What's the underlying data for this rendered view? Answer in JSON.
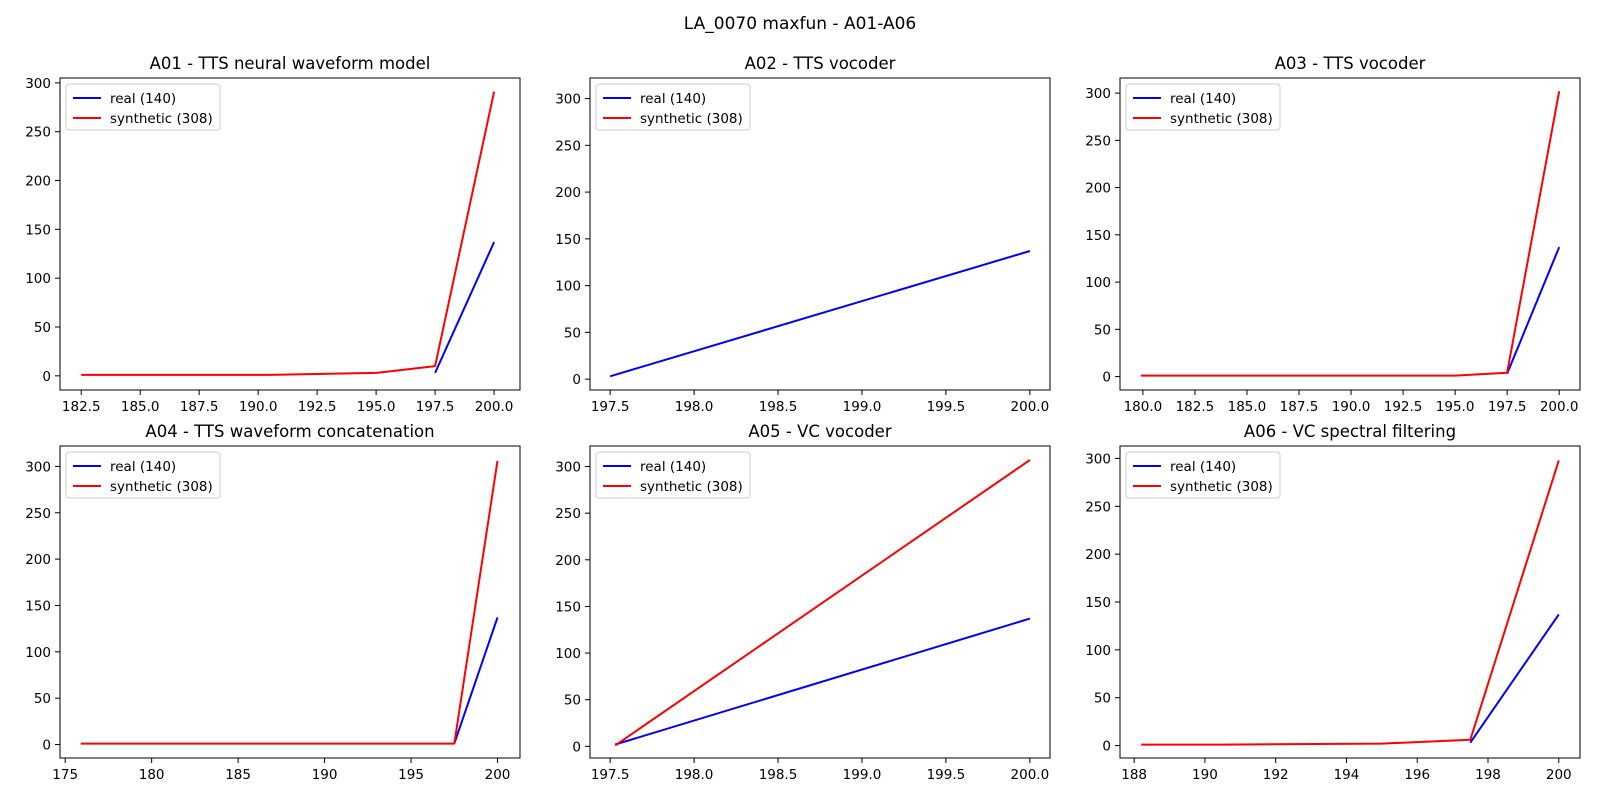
{
  "figure": {
    "suptitle": "LA_0070 maxfun - A01-A06"
  },
  "colors": {
    "real": "#0000ff",
    "synthetic": "#ff0000"
  },
  "chart_data": [
    {
      "type": "line",
      "title": "A01 - TTS neural waveform model",
      "xlim": [
        181.6,
        201.1
      ],
      "ylim": [
        -14.5,
        305
      ],
      "xticks": [
        "182.5",
        "185.0",
        "187.5",
        "190.0",
        "192.5",
        "195.0",
        "197.5",
        "200.0"
      ],
      "yticks": [
        "0",
        "50",
        "100",
        "150",
        "200",
        "250",
        "300"
      ],
      "legend_position": "upper left",
      "series": [
        {
          "name": "real (140)",
          "color": "#0000ff",
          "x": [
            197.5,
            200.0
          ],
          "y": [
            3,
            137
          ]
        },
        {
          "name": "synthetic (308)",
          "color": "#ff0000",
          "x": [
            182.5,
            190.5,
            195.0,
            197.5,
            200.0
          ],
          "y": [
            1,
            1,
            3,
            10,
            291
          ]
        }
      ]
    },
    {
      "type": "line",
      "title": "A02 - TTS vocoder",
      "xlim": [
        197.38,
        200.12
      ],
      "ylim": [
        -11.6,
        322
      ],
      "xticks": [
        "197.5",
        "198.0",
        "198.5",
        "199.0",
        "199.5",
        "200.0"
      ],
      "yticks": [
        "0",
        "50",
        "100",
        "150",
        "200",
        "250",
        "300"
      ],
      "legend_position": "upper left",
      "series": [
        {
          "name": "real (140)",
          "color": "#0000ff",
          "x": [
            197.5,
            200.0
          ],
          "y": [
            3,
            137
          ]
        },
        {
          "name": "synthetic (308)",
          "color": "#ff0000",
          "x": [],
          "y": []
        }
      ]
    },
    {
      "type": "line",
      "title": "A03 - TTS vocoder",
      "xlim": [
        178.9,
        201.0
      ],
      "ylim": [
        -14.2,
        316
      ],
      "xticks": [
        "180.0",
        "182.5",
        "185.0",
        "187.5",
        "190.0",
        "192.5",
        "195.0",
        "197.5",
        "200.0"
      ],
      "yticks": [
        "0",
        "50",
        "100",
        "150",
        "200",
        "250",
        "300"
      ],
      "legend_position": "upper left",
      "series": [
        {
          "name": "real (140)",
          "color": "#0000ff",
          "x": [
            197.5,
            200.0
          ],
          "y": [
            3,
            137
          ]
        },
        {
          "name": "synthetic (308)",
          "color": "#ff0000",
          "x": [
            179.9,
            195.0,
            197.5,
            200.0
          ],
          "y": [
            1,
            1,
            4,
            302
          ]
        }
      ]
    },
    {
      "type": "line",
      "title": "A04 - TTS waveform concatenation",
      "xlim": [
        174.7,
        201.3
      ],
      "ylim": [
        -14.5,
        322
      ],
      "xticks": [
        "175",
        "180",
        "185",
        "190",
        "195",
        "200"
      ],
      "yticks": [
        "0",
        "50",
        "100",
        "150",
        "200",
        "250",
        "300"
      ],
      "legend_position": "upper left",
      "series": [
        {
          "name": "real (140)",
          "color": "#0000ff",
          "x": [
            197.5,
            200.0
          ],
          "y": [
            1,
            137
          ]
        },
        {
          "name": "synthetic (308)",
          "color": "#ff0000",
          "x": [
            175.9,
            197.5,
            200.0
          ],
          "y": [
            1,
            1,
            306
          ]
        }
      ]
    },
    {
      "type": "line",
      "title": "A05 - VC vocoder",
      "xlim": [
        197.38,
        200.12
      ],
      "ylim": [
        -12.5,
        322
      ],
      "xticks": [
        "197.5",
        "198.0",
        "198.5",
        "199.0",
        "199.5",
        "200.0"
      ],
      "yticks": [
        "0",
        "50",
        "100",
        "150",
        "200",
        "250",
        "300"
      ],
      "legend_position": "upper left",
      "series": [
        {
          "name": "real (140)",
          "color": "#0000ff",
          "x": [
            197.53,
            200.0
          ],
          "y": [
            2,
            137
          ]
        },
        {
          "name": "synthetic (308)",
          "color": "#ff0000",
          "x": [
            197.53,
            200.0
          ],
          "y": [
            1,
            307
          ]
        }
      ]
    },
    {
      "type": "line",
      "title": "A06 - VC spectral filtering",
      "xlim": [
        187.6,
        200.6
      ],
      "ylim": [
        -13,
        313
      ],
      "xticks": [
        "188",
        "190",
        "192",
        "194",
        "196",
        "198",
        "200"
      ],
      "yticks": [
        "0",
        "50",
        "100",
        "150",
        "200",
        "250",
        "300"
      ],
      "legend_position": "upper left",
      "series": [
        {
          "name": "real (140)",
          "color": "#0000ff",
          "x": [
            197.5,
            200.0
          ],
          "y": [
            3,
            137
          ]
        },
        {
          "name": "synthetic (308)",
          "color": "#ff0000",
          "x": [
            188.2,
            190.5,
            195.0,
            197.5,
            200.0
          ],
          "y": [
            1,
            1,
            2,
            6,
            298
          ]
        }
      ]
    }
  ]
}
